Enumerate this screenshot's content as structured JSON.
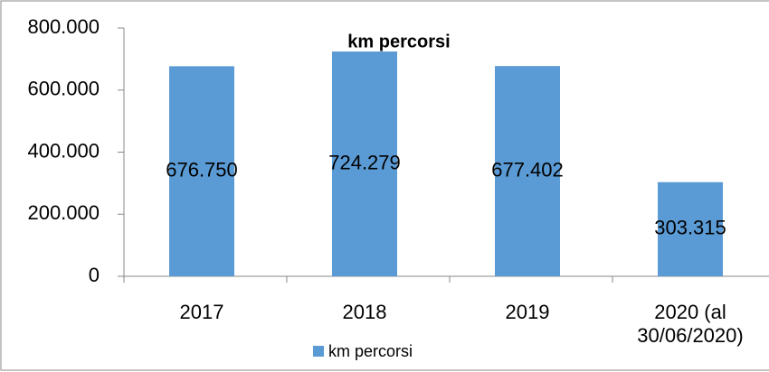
{
  "chart_data": {
    "type": "bar",
    "title": "km percorsi",
    "categories": [
      "2017",
      "2018",
      "2019",
      "2020 (al 30/06/2020)"
    ],
    "series": [
      {
        "name": "km percorsi",
        "color": "#5b9bd5",
        "values": [
          676750,
          724279,
          677402,
          303315
        ],
        "value_labels": [
          "676.750",
          "724.279",
          "677.402",
          "303.315"
        ]
      }
    ],
    "ylim": [
      0,
      800000
    ],
    "yticks": [
      0,
      {
        "value": 200000,
        "label": "200.000"
      },
      {
        "value": 400000,
        "label": "400.000"
      },
      {
        "value": 600000,
        "label": "600.000"
      },
      {
        "value": 800000,
        "label": "800.000"
      }
    ],
    "grid": false,
    "legend": "bottom"
  }
}
